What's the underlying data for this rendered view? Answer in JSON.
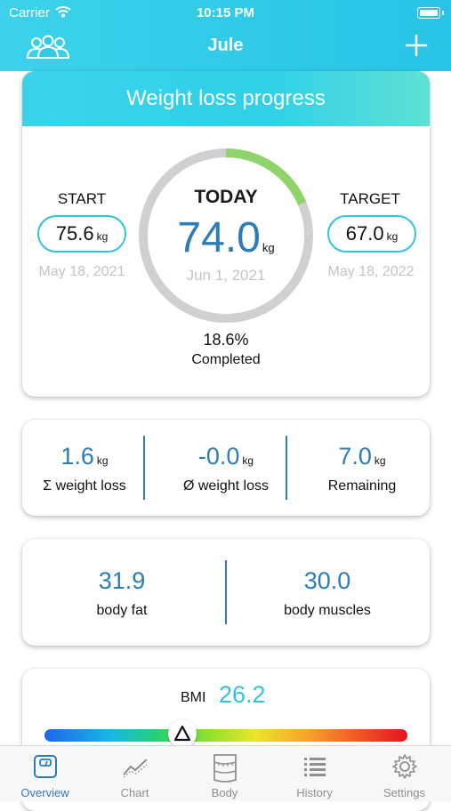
{
  "status_bar": {
    "carrier": "Carrier",
    "time": "10:15 PM"
  },
  "nav": {
    "title": "Jule",
    "left_icon": "users-icon",
    "right_icon": "plus-icon"
  },
  "progress": {
    "title": "Weight loss progress",
    "start": {
      "label": "START",
      "value": "75.6",
      "unit": "kg",
      "date": "May 18, 2021"
    },
    "today": {
      "label": "TODAY",
      "value": "74.0",
      "unit": "kg",
      "date": "Jun 1, 2021"
    },
    "target": {
      "label": "TARGET",
      "value": "67.0",
      "unit": "kg",
      "date": "May 18, 2022"
    },
    "percent": "18.6%",
    "percent_value": 0.186,
    "completed_label": "Completed"
  },
  "stats": [
    {
      "value": "1.6",
      "unit": "kg",
      "label": "Σ weight loss"
    },
    {
      "value": "-0.0",
      "unit": "kg",
      "label": "Ø weight loss"
    },
    {
      "value": "7.0",
      "unit": "kg",
      "label": "Remaining"
    }
  ],
  "body": [
    {
      "value": "31.9",
      "label": "body fat"
    },
    {
      "value": "30.0",
      "label": "body muscles"
    }
  ],
  "bmi": {
    "label": "BMI",
    "value": "26.2",
    "marker_symbol": "Δ",
    "marker_fraction": 0.38
  },
  "tabs": [
    {
      "label": "Overview",
      "icon": "scale-icon",
      "active": true
    },
    {
      "label": "Chart",
      "icon": "chart-icon",
      "active": false
    },
    {
      "label": "Body",
      "icon": "body-tape-icon",
      "active": false
    },
    {
      "label": "History",
      "icon": "list-icon",
      "active": false
    },
    {
      "label": "Settings",
      "icon": "gear-icon",
      "active": false
    }
  ],
  "colors": {
    "accent": "#2fc3dc",
    "value_blue": "#2b7cb7",
    "ring_track": "#d0d0d0",
    "ring_progress": "#8fd36a",
    "muted_text": "#c4c4c4"
  }
}
